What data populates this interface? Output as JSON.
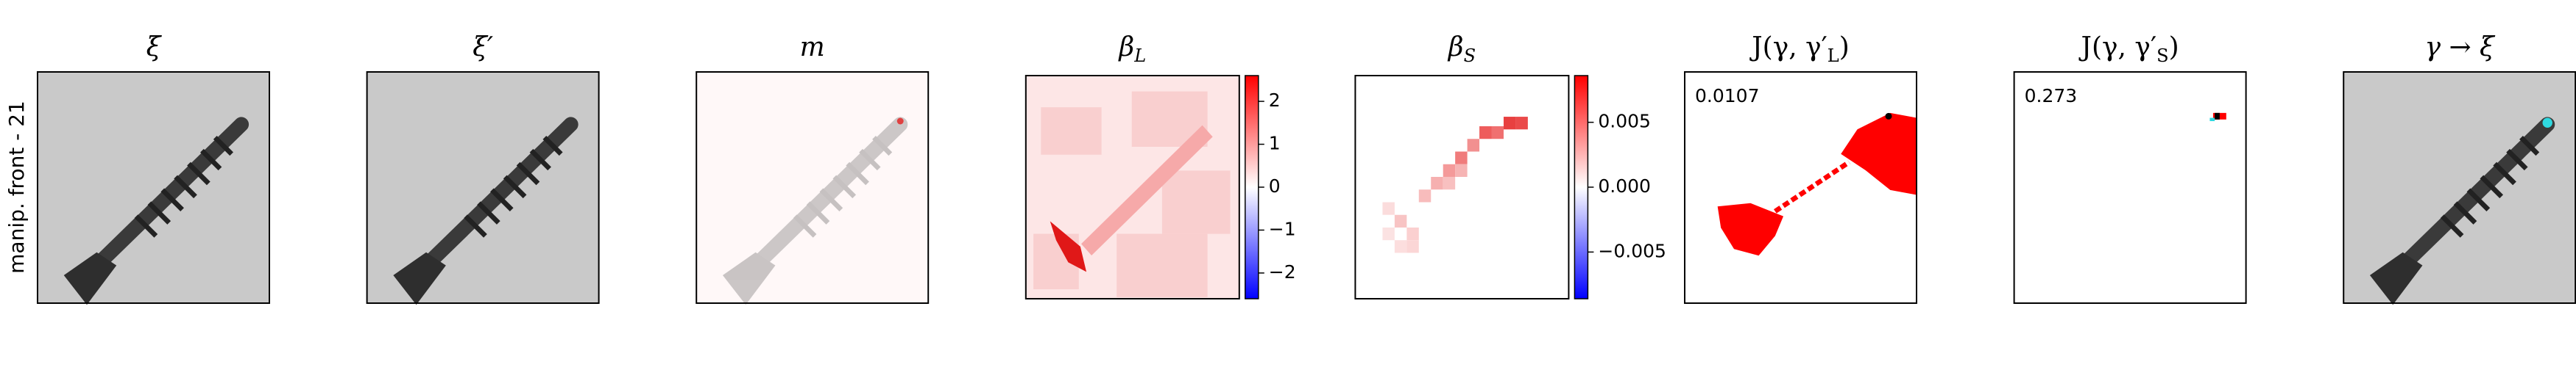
{
  "row_label": "manip. front - 21",
  "panels": [
    {
      "title": {
        "text": "ξ"
      }
    },
    {
      "title": {
        "text": "ξ′"
      }
    },
    {
      "title": {
        "text": "m"
      }
    },
    {
      "title": {
        "text": "β",
        "sub": "L"
      },
      "colorbar": {
        "lim": [
          -2.6,
          2.6
        ],
        "ticks": [
          2,
          1,
          0,
          {
            "value": -1,
            "label": "−1"
          },
          {
            "value": -2,
            "label": "−2"
          }
        ]
      }
    },
    {
      "title": {
        "text": "β",
        "sub": "S"
      },
      "colorbar": {
        "lim": [
          -0.0086,
          0.0086
        ],
        "ticks": [
          0.005,
          {
            "value": 0,
            "label": "0.000"
          },
          {
            "value": -0.005,
            "label": "−0.005"
          }
        ]
      }
    },
    {
      "title": {
        "text": "J(γ, γ′",
        "sub": "L",
        "tail": ")"
      },
      "score": 0.0107
    },
    {
      "title": {
        "text": "J(γ, γ′",
        "sub": "S",
        "tail": ")"
      },
      "score": 0.273
    },
    {
      "title": {
        "text": "γ → ξ"
      }
    }
  ]
}
